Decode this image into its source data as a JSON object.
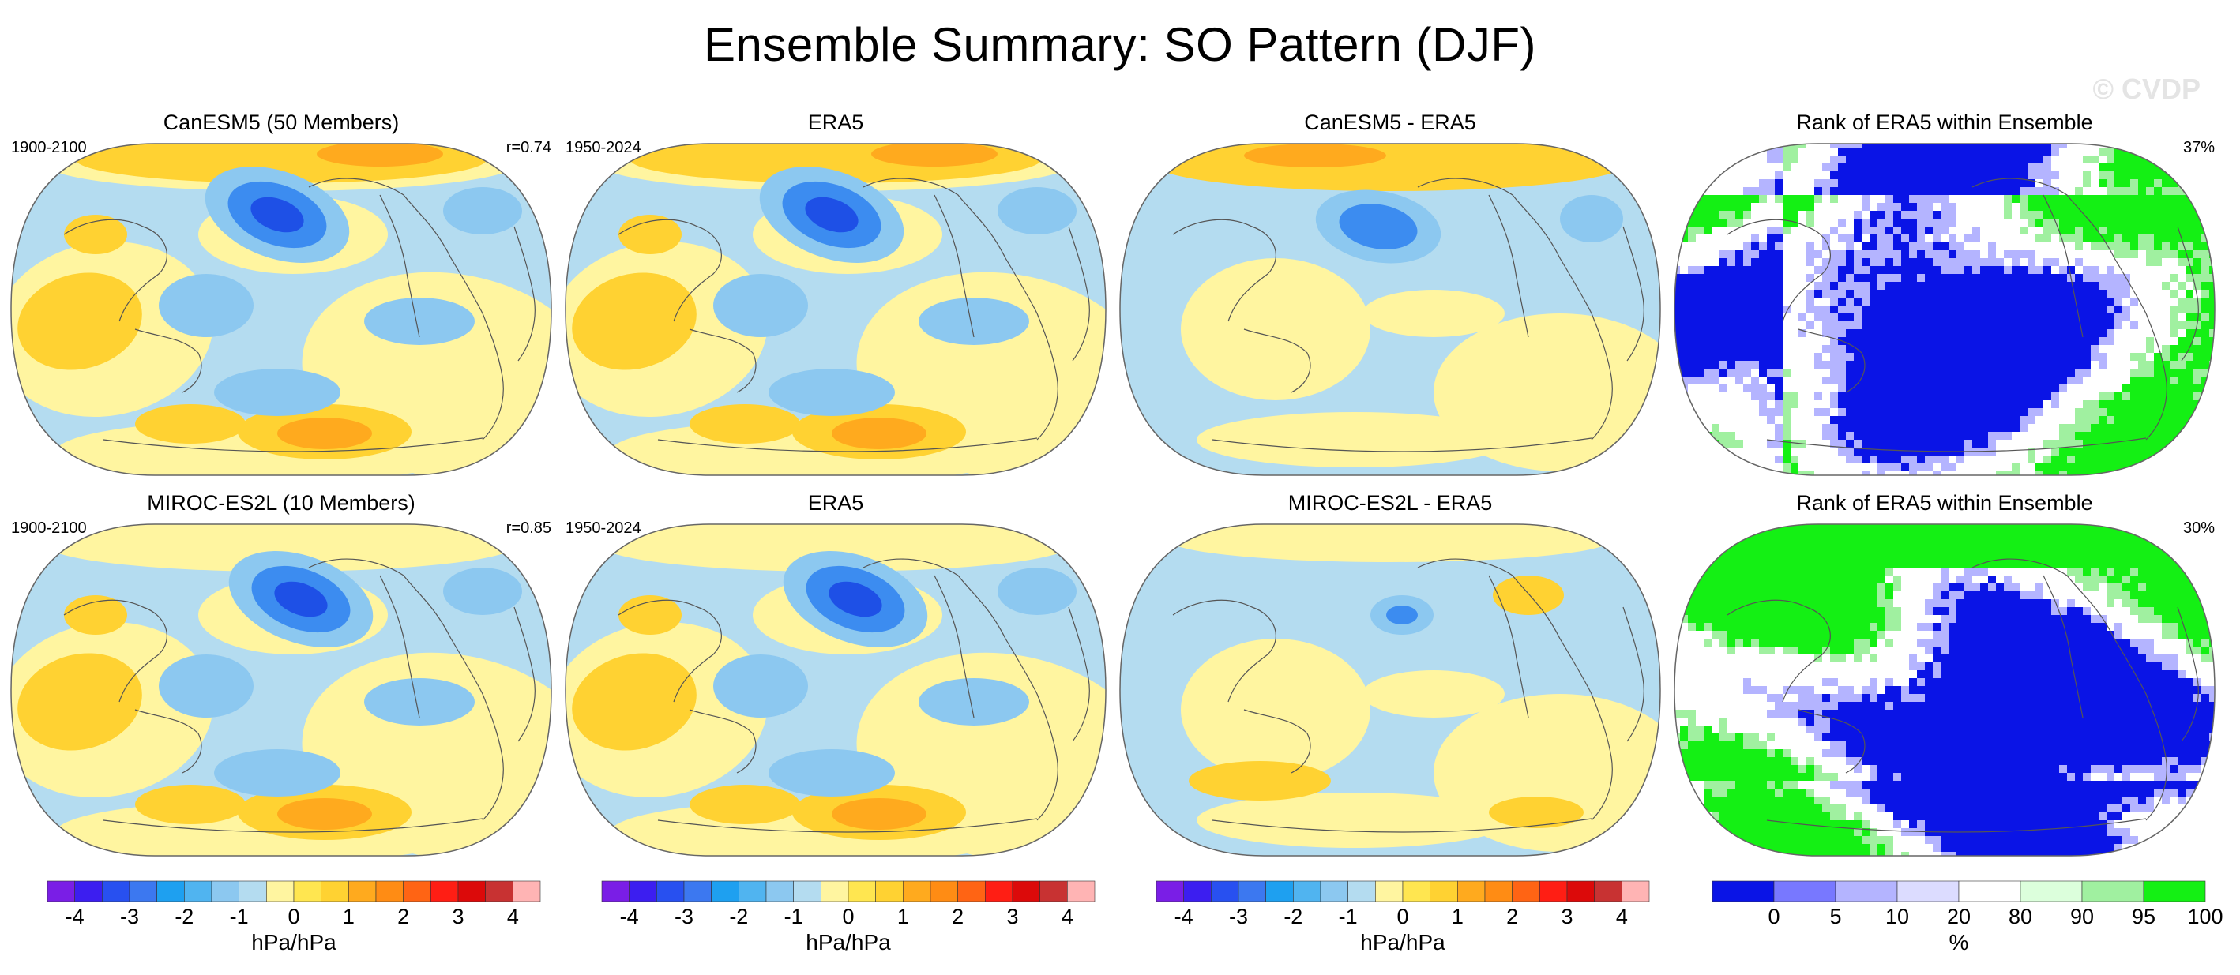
{
  "figure": {
    "title": "Ensemble Summary: SO Pattern (DJF)",
    "watermark": "© CVDP"
  },
  "colors": {
    "ocean_light_blue": "#b4dcf0",
    "land_light_yellow": "#fff5a0",
    "pos_mid": "#ffd232",
    "pos_strong": "#ffaa1e",
    "neg_mid": "#8cc8f0",
    "neg_strong": "#3c8cf0",
    "neg_core": "#1e50e6",
    "rank_blue": "#0a14e6",
    "rank_green": "#14f014"
  },
  "panels": [
    {
      "title": "CanESM5 (50 Members)",
      "left_note": "1900-2100",
      "right_note": "r=0.74",
      "kind": "pattern"
    },
    {
      "title": "ERA5",
      "left_note": "1950-2024",
      "right_note": "",
      "kind": "pattern"
    },
    {
      "title": "CanESM5 - ERA5",
      "left_note": "",
      "right_note": "",
      "kind": "difference"
    },
    {
      "title": "Rank of ERA5 within Ensemble",
      "left_note": "",
      "right_note": "37%",
      "kind": "rank"
    },
    {
      "title": "MIROC-ES2L (10 Members)",
      "left_note": "1900-2100",
      "right_note": "r=0.85",
      "kind": "pattern"
    },
    {
      "title": "ERA5",
      "left_note": "1950-2024",
      "right_note": "",
      "kind": "pattern"
    },
    {
      "title": "MIROC-ES2L - ERA5",
      "left_note": "",
      "right_note": "",
      "kind": "difference"
    },
    {
      "title": "Rank of ERA5 within Ensemble",
      "left_note": "",
      "right_note": "30%",
      "kind": "rank"
    }
  ],
  "colorbars": {
    "pressure": {
      "label": "hPa/hPa",
      "ticks": [
        "-4",
        "-3",
        "-2",
        "-1",
        "0",
        "1",
        "2",
        "3",
        "4"
      ],
      "colors": [
        "#7a1ee6",
        "#3c1ef0",
        "#2850f0",
        "#3c78f0",
        "#1ea0f0",
        "#50b4f0",
        "#8cc8f0",
        "#b4dcf0",
        "#fff5a0",
        "#ffe650",
        "#ffd232",
        "#ffaa1e",
        "#ff8c14",
        "#ff6414",
        "#ff1e14",
        "#dc0a0a",
        "#c83232",
        "#ffb4b4"
      ]
    },
    "rank": {
      "label": "%",
      "ticks": [
        "0",
        "5",
        "10",
        "20",
        "80",
        "90",
        "95",
        "100"
      ],
      "colors": [
        "#0a14e6",
        "#7878ff",
        "#b4b4ff",
        "#dcdcff",
        "#ffffff",
        "#dcffdc",
        "#a0f0a0",
        "#14f014"
      ]
    }
  }
}
